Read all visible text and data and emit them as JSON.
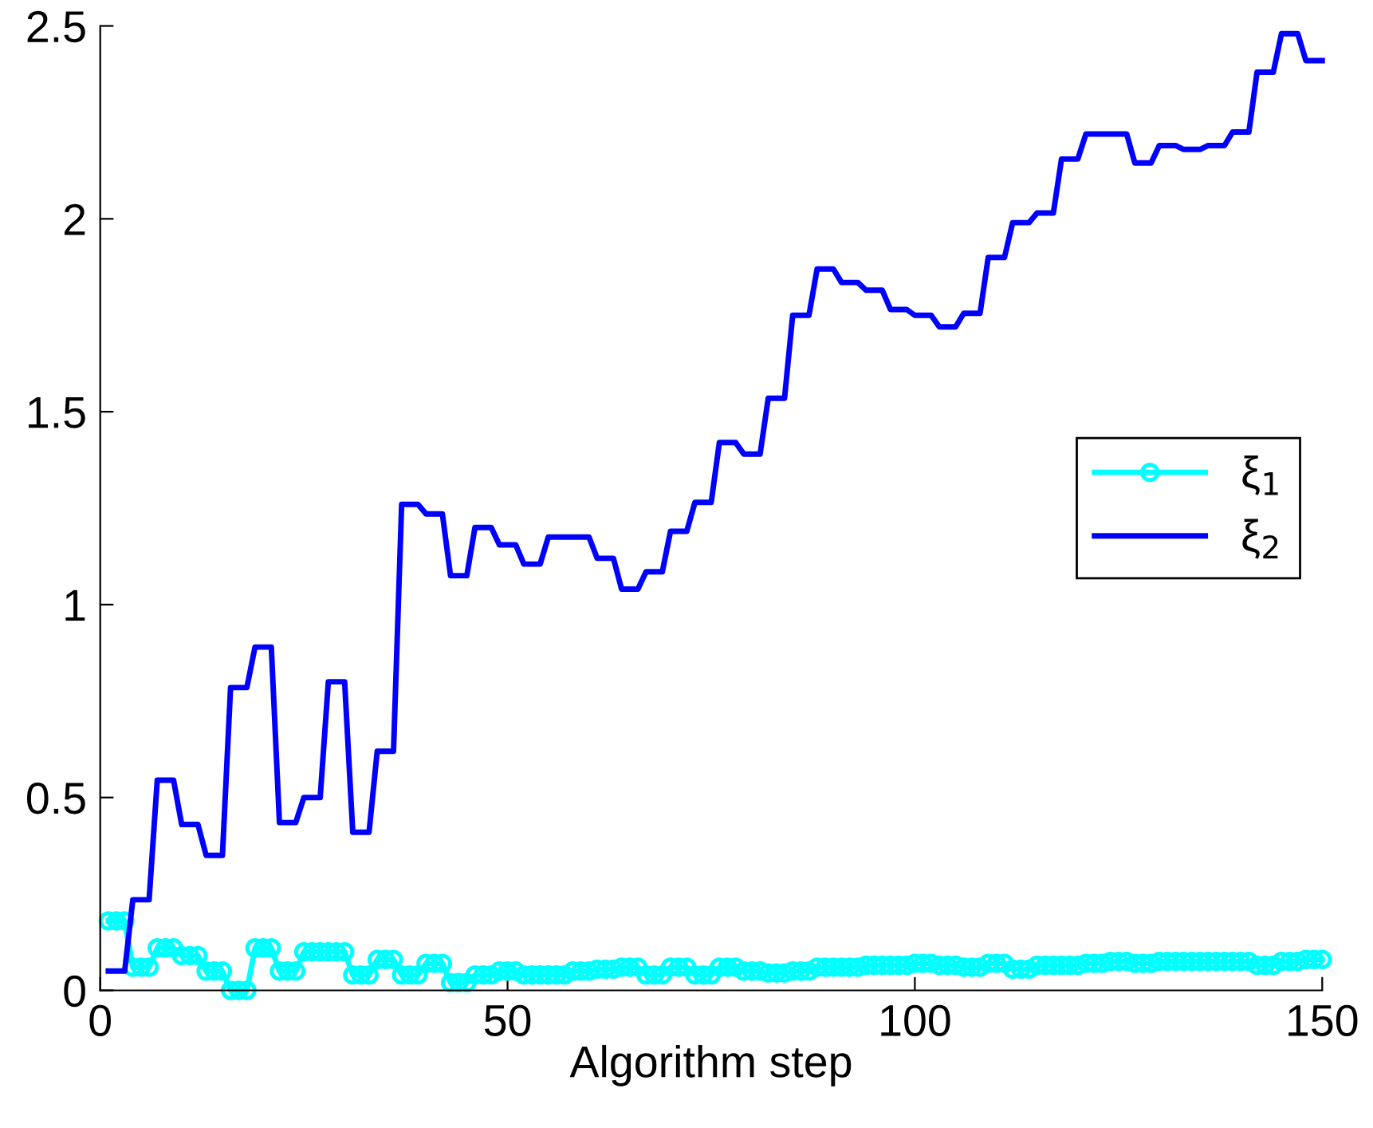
{
  "chart_data": {
    "type": "line",
    "xlabel": "Algorithm step",
    "xlim": [
      0,
      150
    ],
    "ylim": [
      0,
      2.5
    ],
    "xticks": [
      0,
      50,
      100,
      150
    ],
    "yticks": [
      0,
      0.5,
      1,
      1.5,
      2,
      2.5
    ],
    "grid": false,
    "legend": "right",
    "line_style": "solid",
    "series": [
      {
        "name": "ξ$_{1}$",
        "color": "#00ffff",
        "marker": "circle",
        "x": [
          1,
          2,
          3,
          4,
          5,
          6,
          7,
          8,
          9,
          10,
          11,
          12,
          13,
          14,
          15,
          16,
          17,
          18,
          19,
          20,
          21,
          22,
          23,
          24,
          25,
          26,
          27,
          28,
          29,
          30,
          31,
          32,
          33,
          34,
          35,
          36,
          37,
          38,
          39,
          40,
          41,
          42,
          43,
          44,
          45,
          46,
          47,
          48,
          49,
          50,
          51,
          52,
          53,
          54,
          55,
          56,
          57,
          58,
          59,
          60,
          61,
          62,
          63,
          64,
          65,
          66,
          67,
          68,
          69,
          70,
          71,
          72,
          73,
          74,
          75,
          76,
          77,
          78,
          79,
          80,
          81,
          82,
          83,
          84,
          85,
          86,
          87,
          88,
          89,
          90,
          91,
          92,
          93,
          94,
          95,
          96,
          97,
          98,
          99,
          100,
          101,
          102,
          103,
          104,
          105,
          106,
          107,
          108,
          109,
          110,
          111,
          112,
          113,
          114,
          115,
          116,
          117,
          118,
          119,
          120,
          121,
          122,
          123,
          124,
          125,
          126,
          127,
          128,
          129,
          130,
          131,
          132,
          133,
          134,
          135,
          136,
          137,
          138,
          139,
          140,
          141,
          142,
          143,
          144,
          145,
          146,
          147,
          148,
          149,
          150
        ],
        "values": [
          0.18,
          0.18,
          0.18,
          0.06,
          0.06,
          0.06,
          0.11,
          0.11,
          0.11,
          0.09,
          0.09,
          0.09,
          0.05,
          0.05,
          0.05,
          0,
          0,
          0,
          0.11,
          0.11,
          0.11,
          0.05,
          0.05,
          0.05,
          0.1,
          0.1,
          0.1,
          0.1,
          0.1,
          0.1,
          0.04,
          0.04,
          0.04,
          0.08,
          0.08,
          0.08,
          0.04,
          0.04,
          0.04,
          0.07,
          0.07,
          0.07,
          0.02,
          0.02,
          0.02,
          0.04,
          0.04,
          0.04,
          0.05,
          0.05,
          0.05,
          0.04,
          0.04,
          0.04,
          0.04,
          0.04,
          0.04,
          0.05,
          0.05,
          0.05,
          0.055,
          0.055,
          0.055,
          0.06,
          0.06,
          0.06,
          0.04,
          0.04,
          0.04,
          0.06,
          0.06,
          0.06,
          0.04,
          0.04,
          0.04,
          0.06,
          0.06,
          0.06,
          0.05,
          0.05,
          0.05,
          0.045,
          0.045,
          0.045,
          0.05,
          0.05,
          0.05,
          0.06,
          0.06,
          0.06,
          0.06,
          0.06,
          0.06,
          0.065,
          0.065,
          0.065,
          0.065,
          0.065,
          0.065,
          0.07,
          0.07,
          0.07,
          0.065,
          0.065,
          0.065,
          0.06,
          0.06,
          0.06,
          0.07,
          0.07,
          0.07,
          0.055,
          0.055,
          0.055,
          0.065,
          0.065,
          0.065,
          0.065,
          0.065,
          0.065,
          0.07,
          0.07,
          0.07,
          0.075,
          0.075,
          0.075,
          0.07,
          0.07,
          0.07,
          0.075,
          0.075,
          0.075,
          0.075,
          0.075,
          0.075,
          0.075,
          0.075,
          0.075,
          0.075,
          0.075,
          0.075,
          0.065,
          0.065,
          0.065,
          0.075,
          0.075,
          0.075,
          0.08,
          0.08,
          0.08
        ]
      },
      {
        "name": "ξ$_{2}$",
        "color": "#0000ff",
        "marker": "none",
        "x": [
          1,
          3,
          4,
          6,
          7,
          9,
          10,
          12,
          13,
          15,
          16,
          18,
          19,
          21,
          22,
          24,
          25,
          27,
          28,
          30,
          31,
          33,
          34,
          36,
          37,
          39,
          40,
          42,
          43,
          45,
          46,
          48,
          49,
          51,
          52,
          54,
          55,
          60,
          61,
          63,
          64,
          66,
          67,
          69,
          70,
          72,
          73,
          75,
          76,
          78,
          79,
          81,
          82,
          84,
          85,
          87,
          88,
          90,
          91,
          93,
          94,
          96,
          97,
          99,
          100,
          102,
          103,
          105,
          106,
          108,
          109,
          111,
          112,
          114,
          115,
          117,
          118,
          120,
          121,
          126,
          127,
          129,
          130,
          132,
          133,
          135,
          136,
          138,
          139,
          141,
          142,
          144,
          145,
          147,
          148,
          150
        ],
        "values": [
          0.05,
          0.05,
          0.235,
          0.235,
          0.545,
          0.545,
          0.43,
          0.43,
          0.35,
          0.35,
          0.785,
          0.785,
          0.89,
          0.89,
          0.435,
          0.435,
          0.5,
          0.5,
          0.8,
          0.8,
          0.41,
          0.41,
          0.62,
          0.62,
          1.26,
          1.26,
          1.235,
          1.235,
          1.075,
          1.075,
          1.2,
          1.2,
          1.155,
          1.155,
          1.105,
          1.105,
          1.175,
          1.175,
          1.12,
          1.12,
          1.04,
          1.04,
          1.085,
          1.085,
          1.19,
          1.19,
          1.265,
          1.265,
          1.42,
          1.42,
          1.39,
          1.39,
          1.535,
          1.535,
          1.75,
          1.75,
          1.87,
          1.87,
          1.835,
          1.835,
          1.815,
          1.815,
          1.765,
          1.765,
          1.75,
          1.75,
          1.72,
          1.72,
          1.755,
          1.755,
          1.9,
          1.9,
          1.99,
          1.99,
          2.015,
          2.015,
          2.155,
          2.155,
          2.22,
          2.22,
          2.145,
          2.145,
          2.19,
          2.19,
          2.18,
          2.18,
          2.19,
          2.19,
          2.225,
          2.225,
          2.38,
          2.38,
          2.48,
          2.48,
          2.41,
          2.41
        ]
      }
    ]
  }
}
